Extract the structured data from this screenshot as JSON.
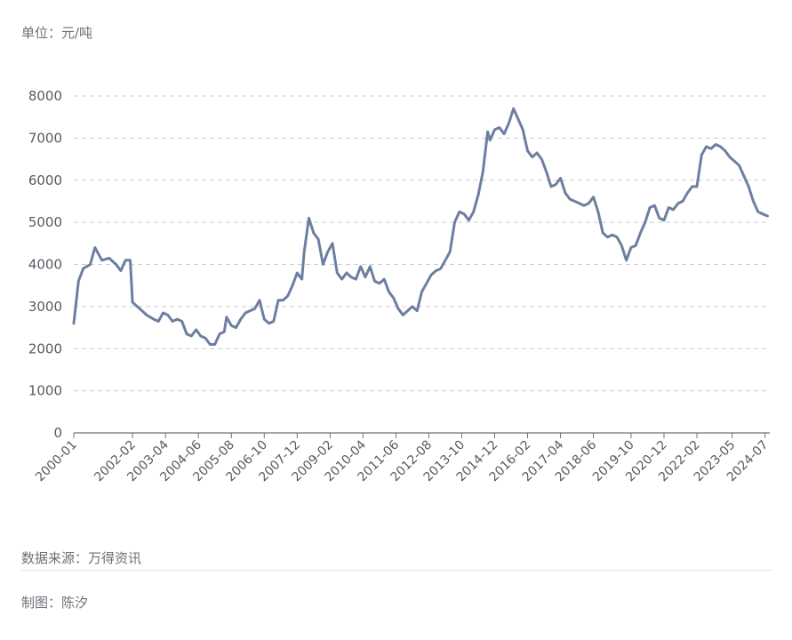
{
  "unit_label": "单位：元/吨",
  "source_text": "数据来源：万得资讯",
  "author_text": "制图：陈汐",
  "colors": {
    "line": "#6d7fa0",
    "grid": "#c9ccd2",
    "axis": "#6b7078"
  },
  "chart_data": {
    "type": "line",
    "title": "",
    "xlabel": "",
    "ylabel": "",
    "ylim": [
      0,
      8000
    ],
    "yticks": [
      0,
      1000,
      2000,
      3000,
      4000,
      5000,
      6000,
      7000,
      8000
    ],
    "grid": true,
    "x_range": [
      "2000-01",
      "2024-09"
    ],
    "xticks": [
      "2000-01",
      "2002-02",
      "2003-04",
      "2004-06",
      "2005-08",
      "2006-10",
      "2007-12",
      "2009-02",
      "2010-04",
      "2011-06",
      "2012-08",
      "2013-10",
      "2014-12",
      "2016-02",
      "2017-04",
      "2018-06",
      "2019-10",
      "2020-12",
      "2022-02",
      "2023-05",
      "2024-07"
    ],
    "series": [
      {
        "values": [
          [
            "2000-01",
            2600
          ],
          [
            "2000-03",
            3600
          ],
          [
            "2000-05",
            3900
          ],
          [
            "2000-08",
            4000
          ],
          [
            "2000-10",
            4400
          ],
          [
            "2001-01",
            4100
          ],
          [
            "2001-04",
            4150
          ],
          [
            "2001-07",
            4000
          ],
          [
            "2001-09",
            3850
          ],
          [
            "2001-11",
            4100
          ],
          [
            "2002-01",
            4100
          ],
          [
            "2002-02",
            3100
          ],
          [
            "2002-05",
            2950
          ],
          [
            "2002-08",
            2800
          ],
          [
            "2002-11",
            2700
          ],
          [
            "2003-01",
            2650
          ],
          [
            "2003-03",
            2850
          ],
          [
            "2003-05",
            2800
          ],
          [
            "2003-07",
            2650
          ],
          [
            "2003-09",
            2700
          ],
          [
            "2003-11",
            2650
          ],
          [
            "2004-01",
            2350
          ],
          [
            "2004-03",
            2300
          ],
          [
            "2004-05",
            2450
          ],
          [
            "2004-07",
            2300
          ],
          [
            "2004-09",
            2250
          ],
          [
            "2004-11",
            2100
          ],
          [
            "2005-01",
            2100
          ],
          [
            "2005-03",
            2350
          ],
          [
            "2005-05",
            2400
          ],
          [
            "2005-06",
            2750
          ],
          [
            "2005-08",
            2550
          ],
          [
            "2005-10",
            2500
          ],
          [
            "2005-12",
            2700
          ],
          [
            "2006-02",
            2850
          ],
          [
            "2006-04",
            2900
          ],
          [
            "2006-06",
            2950
          ],
          [
            "2006-08",
            3150
          ],
          [
            "2006-10",
            2700
          ],
          [
            "2006-12",
            2600
          ],
          [
            "2007-02",
            2650
          ],
          [
            "2007-04",
            3150
          ],
          [
            "2007-06",
            3150
          ],
          [
            "2007-08",
            3250
          ],
          [
            "2007-10",
            3500
          ],
          [
            "2007-12",
            3800
          ],
          [
            "2008-02",
            3650
          ],
          [
            "2008-03",
            4300
          ],
          [
            "2008-05",
            5100
          ],
          [
            "2008-07",
            4750
          ],
          [
            "2008-09",
            4600
          ],
          [
            "2008-11",
            4000
          ],
          [
            "2009-01",
            4300
          ],
          [
            "2009-03",
            4500
          ],
          [
            "2009-05",
            3800
          ],
          [
            "2009-07",
            3650
          ],
          [
            "2009-09",
            3800
          ],
          [
            "2009-11",
            3700
          ],
          [
            "2010-01",
            3650
          ],
          [
            "2010-03",
            3950
          ],
          [
            "2010-05",
            3700
          ],
          [
            "2010-07",
            3950
          ],
          [
            "2010-09",
            3600
          ],
          [
            "2010-11",
            3550
          ],
          [
            "2011-01",
            3650
          ],
          [
            "2011-03",
            3350
          ],
          [
            "2011-05",
            3200
          ],
          [
            "2011-07",
            2950
          ],
          [
            "2011-09",
            2800
          ],
          [
            "2011-11",
            2900
          ],
          [
            "2012-01",
            3000
          ],
          [
            "2012-03",
            2900
          ],
          [
            "2012-05",
            3350
          ],
          [
            "2012-07",
            3550
          ],
          [
            "2012-09",
            3750
          ],
          [
            "2012-11",
            3850
          ],
          [
            "2013-01",
            3900
          ],
          [
            "2013-03",
            4100
          ],
          [
            "2013-05",
            4300
          ],
          [
            "2013-07",
            5000
          ],
          [
            "2013-09",
            5250
          ],
          [
            "2013-11",
            5200
          ],
          [
            "2014-01",
            5050
          ],
          [
            "2014-03",
            5250
          ],
          [
            "2014-05",
            5650
          ],
          [
            "2014-07",
            6200
          ],
          [
            "2014-09",
            7150
          ],
          [
            "2014-10",
            6950
          ],
          [
            "2014-12",
            7200
          ],
          [
            "2015-02",
            7250
          ],
          [
            "2015-04",
            7100
          ],
          [
            "2015-06",
            7350
          ],
          [
            "2015-08",
            7700
          ],
          [
            "2015-10",
            7450
          ],
          [
            "2015-12",
            7200
          ],
          [
            "2016-02",
            6700
          ],
          [
            "2016-04",
            6550
          ],
          [
            "2016-06",
            6650
          ],
          [
            "2016-08",
            6500
          ],
          [
            "2016-10",
            6200
          ],
          [
            "2016-12",
            5850
          ],
          [
            "2017-02",
            5900
          ],
          [
            "2017-04",
            6050
          ],
          [
            "2017-06",
            5700
          ],
          [
            "2017-08",
            5550
          ],
          [
            "2017-10",
            5500
          ],
          [
            "2017-12",
            5450
          ],
          [
            "2018-02",
            5400
          ],
          [
            "2018-04",
            5450
          ],
          [
            "2018-06",
            5600
          ],
          [
            "2018-08",
            5250
          ],
          [
            "2018-10",
            4750
          ],
          [
            "2018-12",
            4650
          ],
          [
            "2019-02",
            4700
          ],
          [
            "2019-04",
            4650
          ],
          [
            "2019-06",
            4450
          ],
          [
            "2019-08",
            4100
          ],
          [
            "2019-10",
            4400
          ],
          [
            "2019-12",
            4450
          ],
          [
            "2020-02",
            4750
          ],
          [
            "2020-04",
            5000
          ],
          [
            "2020-06",
            5350
          ],
          [
            "2020-08",
            5400
          ],
          [
            "2020-10",
            5100
          ],
          [
            "2020-12",
            5050
          ],
          [
            "2021-02",
            5350
          ],
          [
            "2021-04",
            5300
          ],
          [
            "2021-06",
            5450
          ],
          [
            "2021-08",
            5500
          ],
          [
            "2021-10",
            5700
          ],
          [
            "2021-12",
            5850
          ],
          [
            "2022-02",
            5850
          ],
          [
            "2022-04",
            6600
          ],
          [
            "2022-06",
            6800
          ],
          [
            "2022-08",
            6750
          ],
          [
            "2022-10",
            6850
          ],
          [
            "2022-12",
            6800
          ],
          [
            "2023-02",
            6700
          ],
          [
            "2023-04",
            6550
          ],
          [
            "2023-06",
            6450
          ],
          [
            "2023-08",
            6350
          ],
          [
            "2023-10",
            6100
          ],
          [
            "2023-12",
            5850
          ],
          [
            "2024-02",
            5500
          ],
          [
            "2024-04",
            5250
          ],
          [
            "2024-06",
            5200
          ],
          [
            "2024-08",
            5150
          ]
        ]
      }
    ]
  }
}
